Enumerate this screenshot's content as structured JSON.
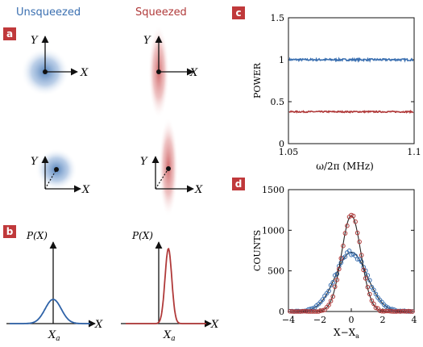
{
  "header": {
    "unsqueezed": "Unsqueezed",
    "squeezed": "Squeezed",
    "unsqueezed_color": "#3a6fb0",
    "squeezed_color": "#b03a3a"
  },
  "panels": {
    "a": "a",
    "b": "b",
    "c": "c",
    "d": "d",
    "badge_color": "#c0393b"
  },
  "phase_space": {
    "x_label": "X",
    "y_label": "Y"
  },
  "distribution": {
    "y_label": "P(X)",
    "x_label": "X",
    "mean_label": "X",
    "mean_sub": "a"
  },
  "chart_data": [
    {
      "type": "line",
      "panel": "c",
      "ylabel": "POWER",
      "xlabel": "ω/2π (MHz)",
      "xlim": [
        1.05,
        1.1
      ],
      "ylim": [
        0,
        1.5
      ],
      "x_ticks": [
        "1.05",
        "1.1"
      ],
      "y_ticks": [
        "0",
        "0.5",
        "1",
        "1.5"
      ],
      "series": [
        {
          "color": "#3a6fb0",
          "level": 1.0,
          "noise": 0.012
        },
        {
          "color": "#b03a3a",
          "level": 0.38,
          "noise": 0.008
        }
      ]
    },
    {
      "type": "scatter",
      "panel": "d",
      "ylabel": "COUNTS",
      "xlabel": "X−X",
      "xlabel_sub": "a",
      "xlim": [
        -4,
        4
      ],
      "ylim": [
        0,
        1500
      ],
      "x_ticks": [
        "−4",
        "−2",
        "0",
        "2",
        "4"
      ],
      "y_ticks": [
        "0",
        "500",
        "1000",
        "1500"
      ],
      "series": [
        {
          "color": "#3a6fb0",
          "peak": 730,
          "sigma": 1.0
        },
        {
          "color": "#b03a3a",
          "peak": 1180,
          "sigma": 0.62
        }
      ]
    }
  ]
}
